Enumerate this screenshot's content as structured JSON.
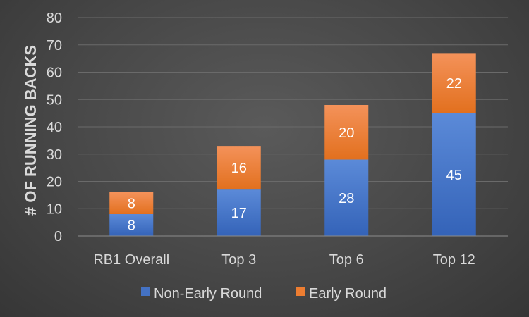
{
  "chart_data": {
    "type": "bar",
    "stacked": true,
    "title": "",
    "xlabel": "",
    "ylabel": "# OF RUNNING BACKS",
    "ylim": [
      0,
      80
    ],
    "yticks": [
      0,
      10,
      20,
      30,
      40,
      50,
      60,
      70,
      80
    ],
    "grid": true,
    "legend_position": "bottom",
    "categories": [
      "RB1 Overall",
      "Top 3",
      "Top 6",
      "Top 12"
    ],
    "series": [
      {
        "name": "Non-Early Round",
        "values": [
          8,
          17,
          28,
          45
        ],
        "color": "#4472c4"
      },
      {
        "name": "Early Round",
        "values": [
          8,
          16,
          20,
          22
        ],
        "color": "#ed7d31"
      }
    ]
  }
}
